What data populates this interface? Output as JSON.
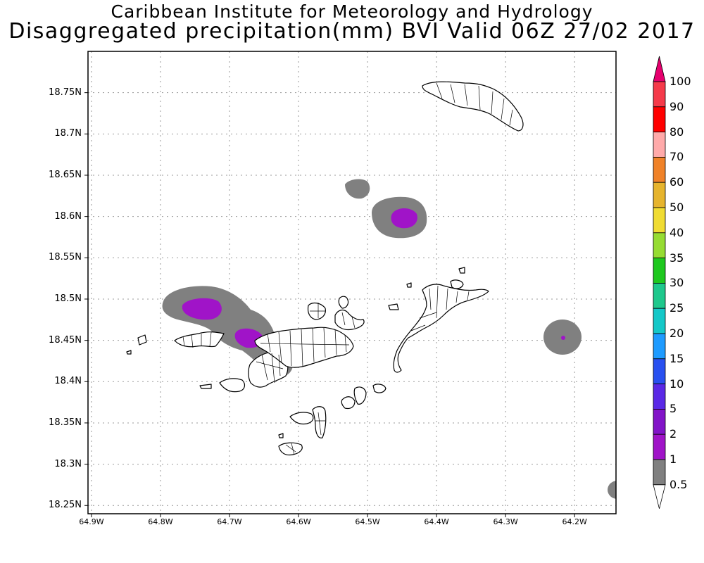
{
  "header": {
    "institute": "Caribbean Institute for Meteorology and Hydrology",
    "title": "Disaggregated precipitation(mm) BVI Valid 06Z 27/02 2017"
  },
  "map": {
    "lat_labels": [
      "18.75N",
      "18.7N",
      "18.65N",
      "18.6N",
      "18.55N",
      "18.5N",
      "18.45N",
      "18.4N",
      "18.35N",
      "18.3N",
      "18.25N"
    ],
    "lon_labels": [
      "64.9W",
      "64.8W",
      "64.7W",
      "64.6W",
      "64.5W",
      "64.4W",
      "64.3W",
      "64.2W"
    ],
    "lat_range": [
      18.24,
      18.8
    ],
    "lon_range": [
      -64.905,
      -64.14
    ],
    "grid": true,
    "land_color": "#ffffff",
    "coast_color": "#000000"
  },
  "legend": {
    "labels": [
      "100",
      "90",
      "80",
      "70",
      "60",
      "50",
      "40",
      "35",
      "30",
      "25",
      "20",
      "15",
      "10",
      "5",
      "2",
      "1",
      "0.5"
    ],
    "colors": [
      "#e6006e",
      "#f53a4a",
      "#ff0000",
      "#ffaaaa",
      "#f08228",
      "#e6b42d",
      "#f0dc32",
      "#96dc32",
      "#1ec81e",
      "#1ec88c",
      "#14c8c8",
      "#1e9bff",
      "#2850f0",
      "#5a28e6",
      "#8214c8",
      "#a014c8",
      "#808080",
      "#ffffff"
    ]
  },
  "precip_areas": [
    {
      "class": "0.5-1",
      "lat": 18.483,
      "lon": -64.742,
      "color": "#808080"
    },
    {
      "class": "1-2",
      "lat": 18.483,
      "lon": -64.74,
      "color": "#a014c8"
    },
    {
      "class": "0.5-1",
      "lat": 18.45,
      "lon": -64.67,
      "color": "#808080"
    },
    {
      "class": "1-2",
      "lat": 18.448,
      "lon": -64.672,
      "color": "#a014c8"
    },
    {
      "class": "0.5-1",
      "lat": 18.424,
      "lon": -64.632,
      "color": "#808080"
    },
    {
      "class": "0.5-1",
      "lat": 18.626,
      "lon": -64.516,
      "color": "#808080"
    },
    {
      "class": "0.5-1",
      "lat": 18.588,
      "lon": -64.44,
      "color": "#808080"
    },
    {
      "class": "1-2",
      "lat": 18.59,
      "lon": -64.44,
      "color": "#a014c8"
    },
    {
      "class": "0.5-1",
      "lat": 18.448,
      "lon": -64.214,
      "color": "#808080"
    },
    {
      "class": "1-2",
      "lat": 18.447,
      "lon": -64.21,
      "color": "#a014c8"
    },
    {
      "class": "0.5-1",
      "lat": 18.268,
      "lon": -64.148,
      "color": "#808080"
    }
  ]
}
